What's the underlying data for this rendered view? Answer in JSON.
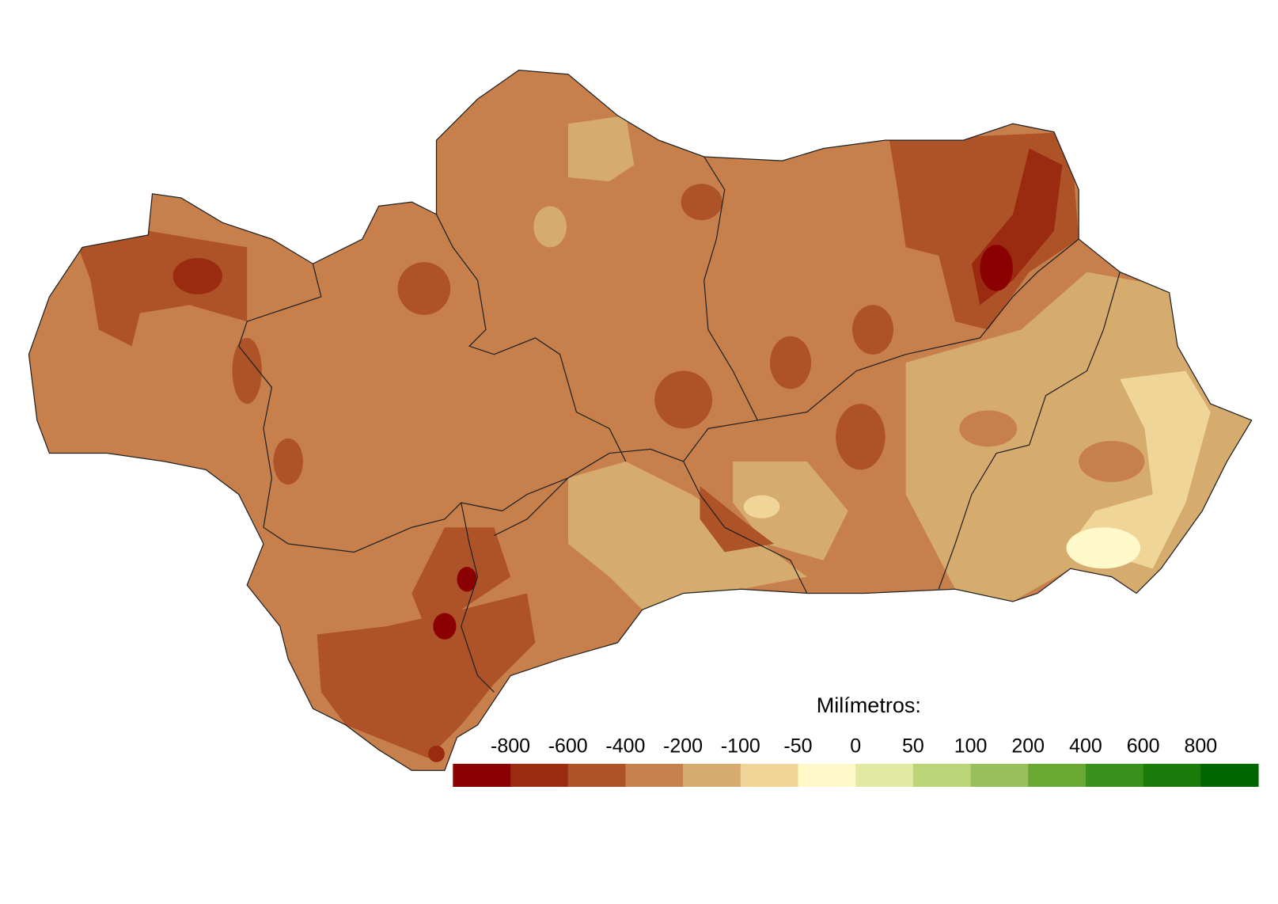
{
  "legend": {
    "title": "Milímetros:",
    "labels": [
      -800,
      -600,
      -400,
      -200,
      -100,
      -50,
      0,
      50,
      100,
      200,
      400,
      600,
      800
    ],
    "colors": [
      "#8b0000",
      "#9a2a10",
      "#ae5228",
      "#c7804b",
      "#d6ab6e",
      "#efd698",
      "#fff8c8",
      "#e2e9a2",
      "#bcd478",
      "#98c05c",
      "#6aa834",
      "#3a901c",
      "#1a7a0a",
      "#006600"
    ]
  }
}
